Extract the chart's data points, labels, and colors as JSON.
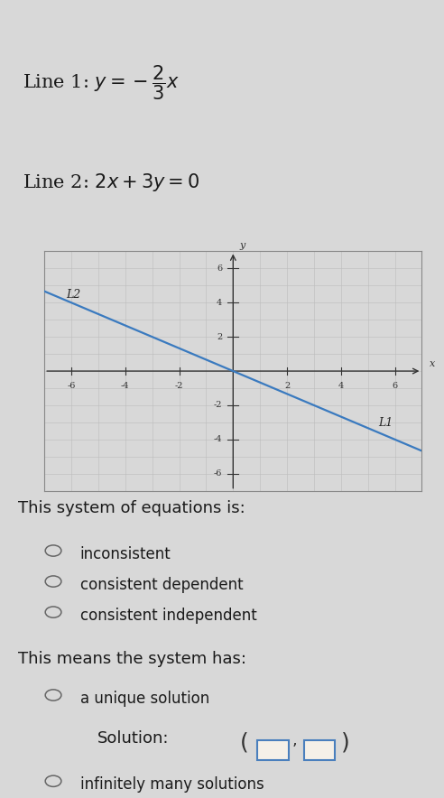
{
  "bg_color": "#e8e8e8",
  "plot_bg_color": "#d8d8d8",
  "line_color": "#3a7abf",
  "line1_label": "L1",
  "line2_label": "L2",
  "xlim": [
    -7,
    7
  ],
  "ylim": [
    -7,
    7
  ],
  "xticks": [
    -6,
    -4,
    -2,
    2,
    4,
    6
  ],
  "yticks": [
    -6,
    -4,
    -2,
    2,
    4,
    6
  ],
  "slope": -0.6667,
  "system_label": "This system of equations is:",
  "options1": [
    "inconsistent",
    "consistent dependent",
    "consistent independent"
  ],
  "system_has_label": "This means the system has:",
  "option_unique": "a unique solution",
  "option_infinite": "infinitely many solutions",
  "solution_text": "Solution:",
  "box_border_color": "#4a7fbd",
  "box_fill_color": "#f5f0e8",
  "radio_color": "#666666",
  "text_color": "#1a1a1a",
  "fig_bg": "#d8d8d8"
}
